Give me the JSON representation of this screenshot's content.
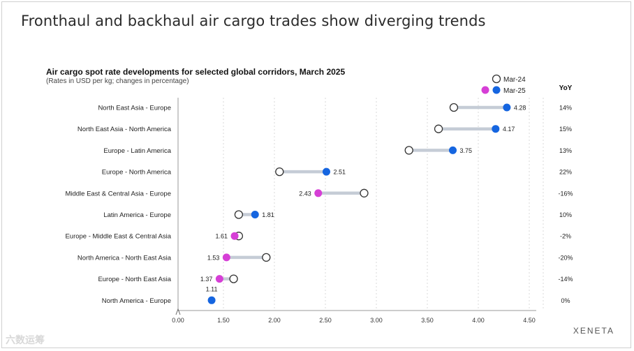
{
  "headline": "Fronthaul and backhaul air cargo trades show diverging trends",
  "brand": "XENETA",
  "watermark": "六数运筹",
  "colors": {
    "increase": "#1565e0",
    "decrease": "#d63fd6",
    "connector": "#c5ccd6",
    "previous_fill": "#ffffff",
    "previous_stroke": "#333333"
  },
  "chart_data": {
    "type": "dumbbell",
    "title": "Air cargo spot rate developments for selected global corridors, March 2025",
    "subtitle": "(Rates in USD per kg; changes in percentage)",
    "xlim": [
      0,
      4.5
    ],
    "ticks": [
      "0.00",
      "1.50",
      "2.00",
      "2.50",
      "3.00",
      "3.50",
      "4.00",
      "4.50"
    ],
    "tick_values": [
      0,
      1.5,
      2.0,
      2.5,
      3.0,
      3.5,
      4.0,
      4.5
    ],
    "legend": {
      "previous": "Mar-24",
      "current": "Mar-25"
    },
    "yoy_header": "YoY",
    "rows": [
      {
        "label": "North East Asia - Europe",
        "mar24": 3.76,
        "mar25": 4.28,
        "value_label": "4.28",
        "yoy": "14%"
      },
      {
        "label": "North East Asia - North America",
        "mar24": 3.61,
        "mar25": 4.17,
        "value_label": "4.17",
        "yoy": "15%"
      },
      {
        "label": "Europe - Latin America",
        "mar24": 3.32,
        "mar25": 3.75,
        "value_label": "3.75",
        "yoy": "13%"
      },
      {
        "label": "Europe - North America",
        "mar24": 2.05,
        "mar25": 2.51,
        "value_label": "2.51",
        "yoy": "22%"
      },
      {
        "label": "Middle East & Central Asia - Europe",
        "mar24": 2.88,
        "mar25": 2.43,
        "value_label": "2.43",
        "yoy": "-16%"
      },
      {
        "label": "Latin America - Europe",
        "mar24": 1.65,
        "mar25": 1.81,
        "value_label": "1.81",
        "yoy": "10%"
      },
      {
        "label": "Europe - Middle East & Central Asia",
        "mar24": 1.65,
        "mar25": 1.61,
        "value_label": "1.61",
        "yoy": "-2%"
      },
      {
        "label": "North America - North East Asia",
        "mar24": 1.92,
        "mar25": 1.53,
        "value_label": "1.53",
        "yoy": "-20%"
      },
      {
        "label": "Europe - North East Asia",
        "mar24": 1.6,
        "mar25": 1.37,
        "value_label": "1.37",
        "yoy": "-14%"
      },
      {
        "label": "North America - Europe",
        "mar24": 1.11,
        "mar25": 1.11,
        "value_label": "1.11",
        "yoy": "0%"
      }
    ]
  }
}
